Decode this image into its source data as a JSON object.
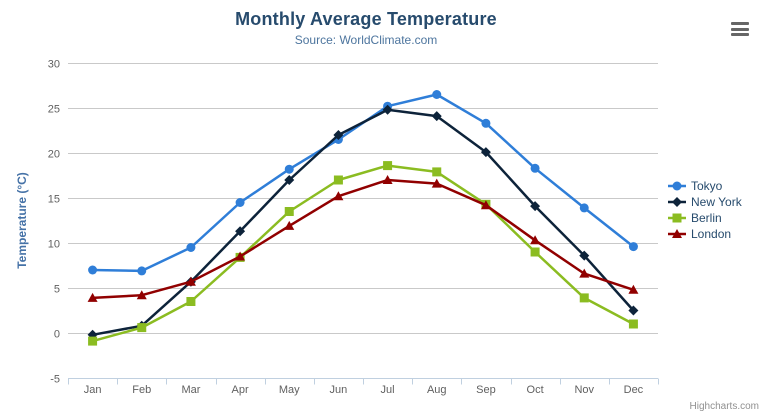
{
  "header": {
    "title": "Monthly Average Temperature",
    "subtitle": "Source: WorldClimate.com"
  },
  "credits": {
    "label": "Highcharts.com"
  },
  "export_menu": {
    "icon": "hamburger-icon"
  },
  "colors": {
    "title": "#274b6d",
    "subtitle": "#4d759e",
    "grid_line": "#c9c9c9",
    "axis_line": "#c0d0e0",
    "axis_label": "#606060",
    "yaxis_title": "#4572a7",
    "legend_text": "#274b6d",
    "credits_text": "#909090",
    "menu_icon": "#666666"
  },
  "chart_data": {
    "type": "line",
    "title": "Monthly Average Temperature",
    "subtitle": "Source: WorldClimate.com",
    "xlabel": "",
    "ylabel": "Temperature (°C)",
    "ylim": [
      -5,
      30
    ],
    "ytick_step": 5,
    "yticks": [
      -5,
      0,
      5,
      10,
      15,
      20,
      25,
      30
    ],
    "grid": true,
    "legend_position": "right",
    "categories": [
      "Jan",
      "Feb",
      "Mar",
      "Apr",
      "May",
      "Jun",
      "Jul",
      "Aug",
      "Sep",
      "Oct",
      "Nov",
      "Dec"
    ],
    "series": [
      {
        "name": "Tokyo",
        "color": "#2f7ed8",
        "marker": "circle",
        "values": [
          7.0,
          6.9,
          9.5,
          14.5,
          18.2,
          21.5,
          25.2,
          26.5,
          23.3,
          18.3,
          13.9,
          9.6
        ]
      },
      {
        "name": "New York",
        "color": "#0d233a",
        "marker": "diamond",
        "values": [
          -0.2,
          0.8,
          5.7,
          11.3,
          17.0,
          22.0,
          24.8,
          24.1,
          20.1,
          14.1,
          8.6,
          2.5
        ]
      },
      {
        "name": "Berlin",
        "color": "#8bbc21",
        "marker": "square",
        "values": [
          -0.9,
          0.6,
          3.5,
          8.4,
          13.5,
          17.0,
          18.6,
          17.9,
          14.3,
          9.0,
          3.9,
          1.0
        ]
      },
      {
        "name": "London",
        "color": "#910000",
        "marker": "triangle",
        "values": [
          3.9,
          4.2,
          5.7,
          8.5,
          11.9,
          15.2,
          17.0,
          16.6,
          14.2,
          10.3,
          6.6,
          4.8
        ]
      }
    ]
  }
}
